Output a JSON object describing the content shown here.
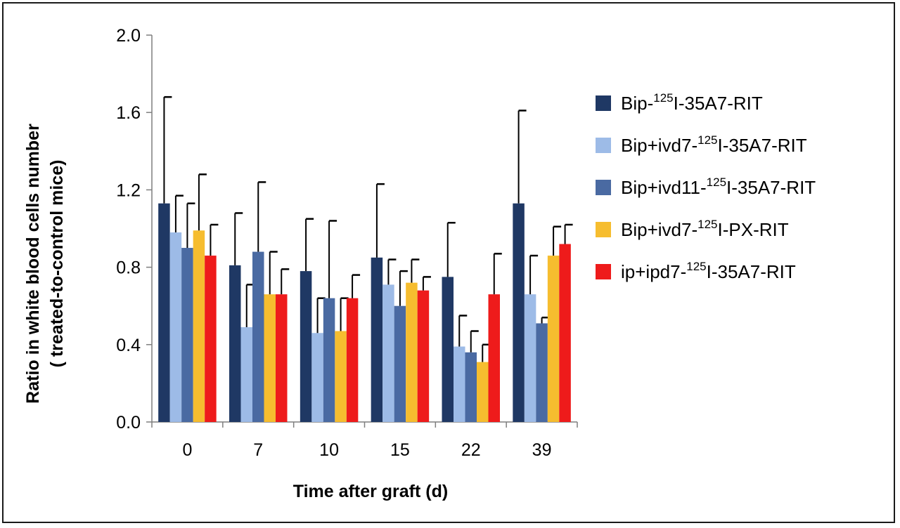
{
  "chart_data": {
    "type": "bar",
    "xlabel": "Time after graft (d)",
    "ylabel_lines": [
      "Ratio in white blood cells number",
      "( treated-to-control mice)"
    ],
    "categories": [
      "0",
      "7",
      "10",
      "15",
      "22",
      "39"
    ],
    "ylim": [
      0,
      2.0
    ],
    "yticks": [
      "0.0",
      "0.4",
      "0.8",
      "1.2",
      "1.6",
      "2.0"
    ],
    "ytick_values": [
      0,
      0.4,
      0.8,
      1.2,
      1.6,
      2.0
    ],
    "grid": false,
    "legend_position": "right",
    "error_bars": "positive",
    "series": [
      {
        "name": "Bip-125I-35A7-RIT",
        "legend": {
          "pre": "Bip-",
          "sup": "125",
          "post": "I-35A7-RIT"
        },
        "color": "#1f3864",
        "values": [
          1.13,
          0.81,
          0.78,
          0.85,
          0.75,
          1.13
        ],
        "errors": [
          0.55,
          0.27,
          0.27,
          0.38,
          0.28,
          0.48
        ]
      },
      {
        "name": "Bip+ivd7-125I-35A7-RIT",
        "legend": {
          "pre": "Bip+ivd7-",
          "sup": "125",
          "post": "I-35A7-RIT"
        },
        "color": "#9dbbe7",
        "values": [
          0.98,
          0.49,
          0.46,
          0.71,
          0.39,
          0.66
        ],
        "errors": [
          0.19,
          0.22,
          0.18,
          0.13,
          0.16,
          0.2
        ]
      },
      {
        "name": "Bip+ivd11-125I-35A7-RIT",
        "legend": {
          "pre": "Bip+ivd11-",
          "sup": "125",
          "post": "I-35A7-RIT"
        },
        "color": "#4a6aa2",
        "values": [
          0.9,
          0.88,
          0.64,
          0.6,
          0.36,
          0.51
        ],
        "errors": [
          0.23,
          0.36,
          0.4,
          0.18,
          0.11,
          0.03
        ]
      },
      {
        "name": "Bip+ivd7-125I-PX-RIT",
        "legend": {
          "pre": "Bip+ivd7-",
          "sup": "125",
          "post": "I-PX-RIT"
        },
        "color": "#f6bd2f",
        "values": [
          0.99,
          0.66,
          0.47,
          0.72,
          0.31,
          0.86
        ],
        "errors": [
          0.29,
          0.22,
          0.17,
          0.12,
          0.09,
          0.15
        ]
      },
      {
        "name": "ip+ipd7-125I-35A7-RIT",
        "legend": {
          "pre": "ip+ipd7-",
          "sup": "125",
          "post": "I-35A7-RIT"
        },
        "color": "#ee1b1b",
        "values": [
          0.86,
          0.66,
          0.64,
          0.68,
          0.66,
          0.92
        ],
        "errors": [
          0.16,
          0.13,
          0.12,
          0.07,
          0.21,
          0.1
        ]
      }
    ]
  }
}
